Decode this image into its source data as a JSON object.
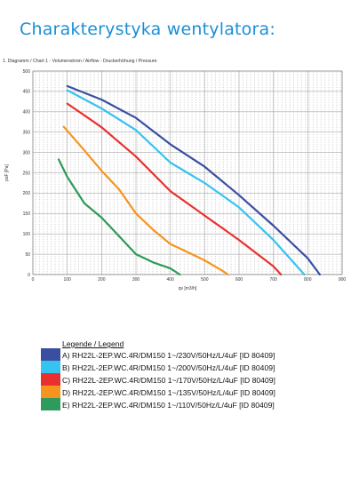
{
  "heading": "Charakterystyka wentylatora:",
  "chart_data": {
    "type": "line",
    "title": "1. Diagramm / Chart 1 - Volumenstrom / Airflow - Druckerhöhung / Pressure",
    "xlabel": "qv [m3/h]",
    "ylabel": "psF [Pa]",
    "xlim": [
      0,
      900
    ],
    "ylim": [
      0,
      500
    ],
    "xticks": [
      "0",
      "100",
      "200",
      "300",
      "400",
      "500",
      "600",
      "700",
      "800",
      "900"
    ],
    "yticks": [
      "0",
      "50",
      "100",
      "150",
      "200",
      "250",
      "300",
      "350",
      "400",
      "450",
      "500"
    ],
    "grid": true,
    "legend_position": "bottom",
    "series": [
      {
        "name": "A) RH22L-2EP.WC.4R/DM150 1~/230V/50Hz/L/4uF [ID 80409]",
        "color": "#3a4fa0",
        "x": [
          100,
          200,
          300,
          400,
          500,
          600,
          700,
          800,
          835
        ],
        "y": [
          463,
          430,
          385,
          320,
          265,
          195,
          120,
          40,
          0
        ]
      },
      {
        "name": "B) RH22L-2EP.WC.4R/DM150 1~/200V/50Hz/L/4uF [ID 80409]",
        "color": "#35c4ef",
        "x": [
          100,
          200,
          300,
          400,
          500,
          600,
          700,
          790
        ],
        "y": [
          453,
          408,
          355,
          275,
          225,
          165,
          85,
          0
        ]
      },
      {
        "name": "C) RH22L-2EP.WC.4R/DM150 1~/170V/50Hz/L/4uF [ID 80409]",
        "color": "#e8312e",
        "x": [
          100,
          200,
          300,
          400,
          500,
          600,
          700,
          722
        ],
        "y": [
          420,
          362,
          290,
          205,
          145,
          85,
          20,
          0
        ]
      },
      {
        "name": "D) RH22L-2EP.WC.4R/DM150 1~/135V/50Hz/L/4uF [ID 80409]",
        "color": "#f7941d",
        "x": [
          90,
          150,
          200,
          250,
          300,
          350,
          400,
          450,
          500,
          550,
          568
        ],
        "y": [
          363,
          305,
          255,
          210,
          150,
          110,
          75,
          55,
          35,
          10,
          0
        ]
      },
      {
        "name": "E) RH22L-2EP.WC.4R/DM150 1~/110V/50Hz/L/4uF [ID 80409]",
        "color": "#2e9a5b",
        "x": [
          75,
          100,
          150,
          200,
          250,
          300,
          350,
          400,
          428
        ],
        "y": [
          283,
          240,
          175,
          140,
          95,
          50,
          30,
          15,
          0
        ]
      }
    ]
  },
  "legend": {
    "title": "Legende / Legend"
  }
}
